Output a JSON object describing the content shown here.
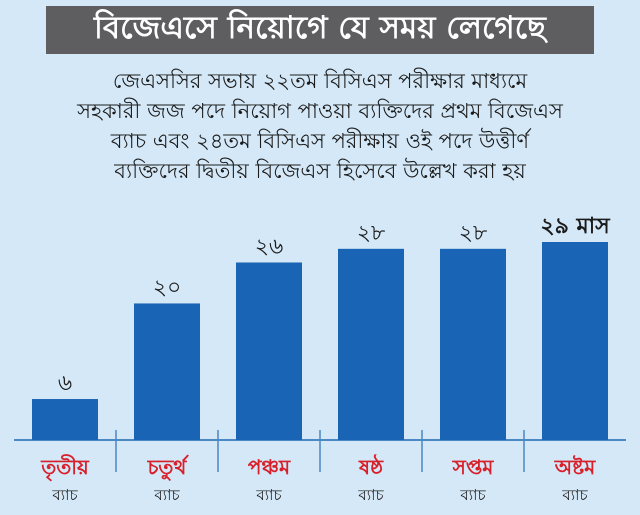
{
  "header": {
    "title": "বিজেএসে নিয়োগে যে সময় লেগেছে"
  },
  "subtitle_lines": [
    "জেএসসির সভায় ২২তম বিসিএস পরীক্ষার মাধ্যমে",
    "সহকারী জজ পদে নিয়োগ পাওয়া ব্যক্তিদের প্রথম বিজেএস",
    "ব্যাচ এবং ২৪তম বিসিএস পরীক্ষায় ওই পদে উত্তীর্ণ",
    "ব্যক্তিদের দ্বিতীয় বিজেএস হিসেবে উল্লেখ করা হয়"
  ],
  "chart_data": {
    "type": "bar",
    "categories": [
      "তৃতীয়",
      "চতুর্থ",
      "পঞ্চম",
      "ষষ্ঠ",
      "সপ্তম",
      "অষ্টম"
    ],
    "category_sublabel": "ব্যাচ",
    "values": [
      6,
      20,
      26,
      28,
      28,
      29
    ],
    "value_labels": [
      "৬",
      "২০",
      "২৬",
      "২৮",
      "২৮",
      "২৯ মাস"
    ],
    "ylim": [
      0,
      29
    ],
    "grid": false,
    "colors": {
      "bar": "#1a64b5",
      "category": "#d8202a",
      "baseline": "#4b88c4"
    }
  }
}
